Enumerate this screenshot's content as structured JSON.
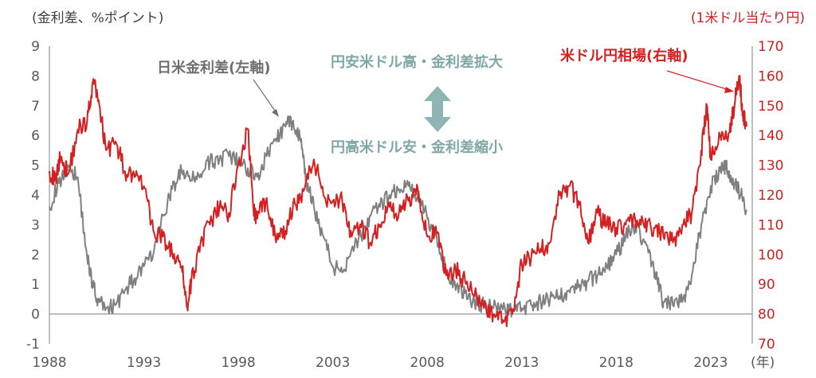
{
  "chart_data": {
    "type": "line",
    "left_axis_unit": "(金利差、%ポイント)",
    "right_axis_unit": "(1米ドル当たり円)",
    "x_axis_unit": "(年)",
    "ylim_left": [
      -1,
      9
    ],
    "ylim_right": [
      70,
      170
    ],
    "xlim": [
      1988,
      2025.2
    ],
    "left_ticks": [
      "-1",
      "0",
      "1",
      "2",
      "3",
      "4",
      "5",
      "6",
      "7",
      "8",
      "9"
    ],
    "right_ticks": [
      "70",
      "80",
      "90",
      "100",
      "110",
      "120",
      "130",
      "140",
      "150",
      "160",
      "170"
    ],
    "x_ticks": [
      "1988",
      "1993",
      "1998",
      "2003",
      "2008",
      "2013",
      "2018",
      "2023"
    ],
    "grid": false,
    "annotations": {
      "spread_label": "日米金利差(左軸)",
      "fx_label": "米ドル円相場(右軸)",
      "upper_label": "円安米ドル高・金利差拡大",
      "lower_label": "円高米ドル安・金利差縮小"
    },
    "colors": {
      "spread": "#808080",
      "fx": "#d42020",
      "arrow": "#8fb4b4"
    },
    "series": [
      {
        "name": "日米金利差",
        "axis": "left",
        "x": [
          1988.0,
          1988.5,
          1989.0,
          1989.5,
          1990.0,
          1990.3,
          1990.6,
          1991.0,
          1991.5,
          1992.0,
          1992.5,
          1993.0,
          1993.5,
          1994.0,
          1994.5,
          1995.0,
          1995.5,
          1996.0,
          1996.5,
          1997.0,
          1997.5,
          1998.0,
          1998.5,
          1999.0,
          1999.5,
          2000.0,
          2000.5,
          2000.9,
          2001.3,
          2001.6,
          2002.0,
          2002.5,
          2003.0,
          2003.5,
          2004.0,
          2004.5,
          2005.0,
          2005.5,
          2006.0,
          2006.5,
          2007.0,
          2007.5,
          2008.0,
          2008.5,
          2009.0,
          2009.5,
          2010.0,
          2010.5,
          2011.0,
          2011.5,
          2012.0,
          2012.5,
          2013.0,
          2013.5,
          2014.0,
          2014.5,
          2015.0,
          2015.5,
          2016.0,
          2016.5,
          2017.0,
          2017.5,
          2018.0,
          2018.5,
          2019.0,
          2019.5,
          2020.0,
          2020.2,
          2020.5,
          2021.0,
          2021.5,
          2022.0,
          2022.5,
          2023.0,
          2023.5,
          2023.8,
          2024.0,
          2024.3,
          2024.6,
          2024.9
        ],
        "values": [
          3.6,
          4.4,
          5.0,
          4.6,
          1.9,
          1.0,
          0.4,
          0.2,
          0.3,
          0.8,
          1.2,
          1.6,
          2.0,
          3.3,
          4.2,
          4.8,
          4.5,
          4.7,
          5.1,
          5.2,
          5.3,
          5.1,
          4.9,
          4.6,
          5.3,
          5.9,
          6.3,
          6.5,
          5.8,
          4.4,
          3.6,
          2.6,
          1.6,
          1.4,
          2.2,
          2.6,
          3.3,
          3.6,
          4.0,
          4.2,
          4.3,
          4.0,
          3.2,
          2.6,
          1.5,
          0.8,
          0.7,
          0.4,
          0.3,
          0.2,
          0.15,
          0.15,
          0.2,
          0.3,
          0.4,
          0.5,
          0.6,
          0.8,
          0.9,
          1.1,
          1.3,
          1.6,
          2.0,
          2.6,
          3.0,
          2.4,
          1.5,
          1.0,
          0.4,
          0.3,
          0.4,
          1.3,
          3.0,
          4.3,
          4.8,
          5.0,
          4.6,
          4.4,
          4.0,
          3.5
        ]
      },
      {
        "name": "米ドル円相場",
        "axis": "right",
        "x": [
          1988.0,
          1988.3,
          1988.6,
          1989.0,
          1989.5,
          1990.0,
          1990.3,
          1990.6,
          1991.0,
          1991.5,
          1992.0,
          1992.5,
          1993.0,
          1993.5,
          1994.0,
          1994.5,
          1995.0,
          1995.3,
          1995.5,
          1996.0,
          1996.5,
          1997.0,
          1997.5,
          1998.0,
          1998.5,
          1998.8,
          1999.0,
          1999.5,
          2000.0,
          2000.5,
          2001.0,
          2001.5,
          2002.0,
          2002.5,
          2003.0,
          2003.5,
          2004.0,
          2004.5,
          2005.0,
          2005.5,
          2006.0,
          2006.5,
          2007.0,
          2007.5,
          2008.0,
          2008.5,
          2009.0,
          2009.5,
          2010.0,
          2010.5,
          2011.0,
          2011.5,
          2012.0,
          2012.5,
          2013.0,
          2013.5,
          2014.0,
          2014.5,
          2015.0,
          2015.5,
          2016.0,
          2016.5,
          2017.0,
          2017.5,
          2018.0,
          2018.5,
          2019.0,
          2019.5,
          2020.0,
          2020.5,
          2021.0,
          2021.5,
          2022.0,
          2022.5,
          2022.8,
          2023.0,
          2023.5,
          2024.0,
          2024.3,
          2024.5,
          2024.7,
          2024.9
        ],
        "values": [
          128,
          125,
          133,
          127,
          142,
          145,
          158,
          152,
          135,
          138,
          128,
          126,
          123,
          108,
          106,
          100,
          96,
          82,
          90,
          104,
          110,
          116,
          114,
          130,
          142,
          115,
          112,
          119,
          104,
          108,
          117,
          122,
          132,
          120,
          118,
          118,
          106,
          109,
          104,
          110,
          116,
          114,
          118,
          122,
          106,
          107,
          93,
          95,
          91,
          86,
          82,
          80,
          78,
          80,
          97,
          99,
          102,
          104,
          120,
          123,
          118,
          104,
          114,
          110,
          109,
          110,
          112,
          109,
          109,
          106,
          104,
          110,
          114,
          135,
          150,
          132,
          140,
          141,
          152,
          160,
          148,
          143
        ]
      }
    ]
  }
}
